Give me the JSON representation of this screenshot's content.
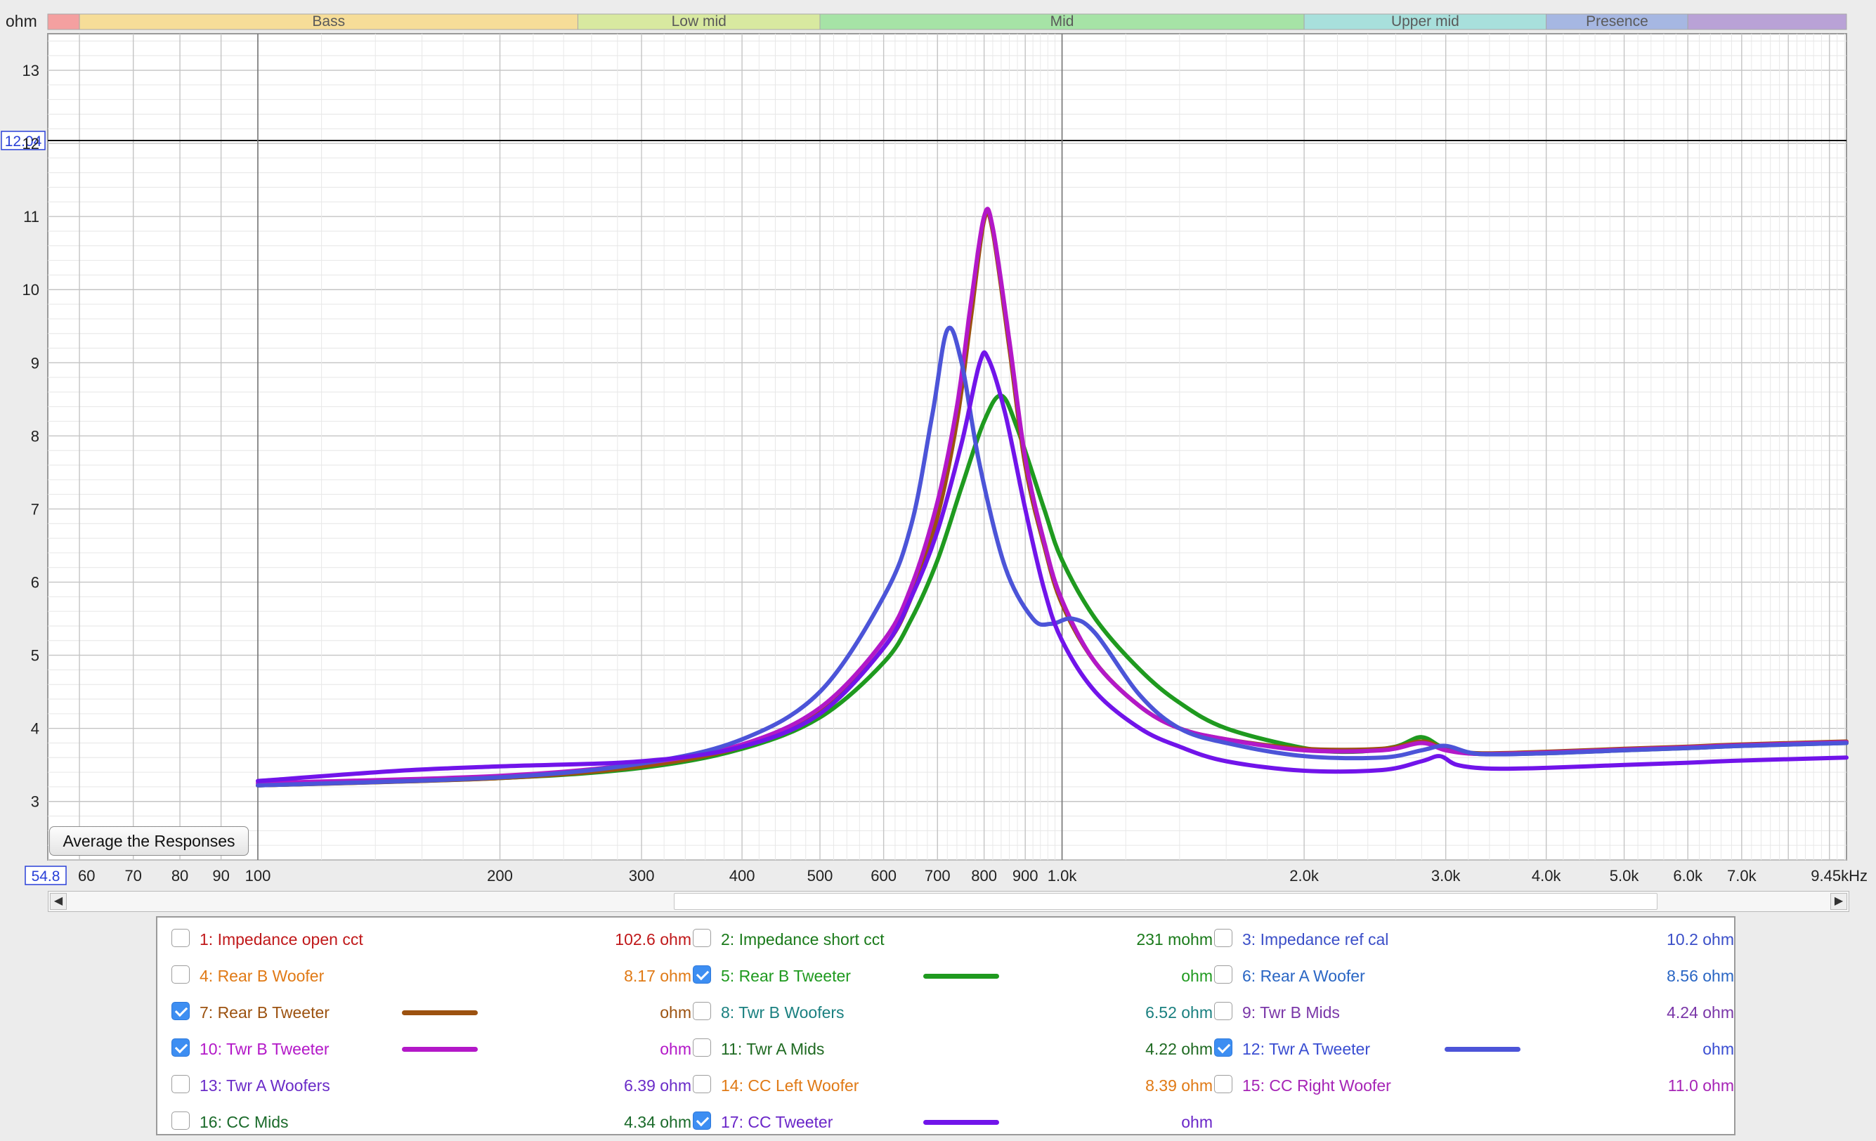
{
  "chart_data": {
    "type": "line",
    "ylabel": "ohm",
    "xunit": "kHz",
    "x_scale": "log",
    "xlim": [
      54.8,
      9450
    ],
    "ylim": [
      2.2,
      13.5
    ],
    "y_ticks": [
      3,
      4,
      5,
      6,
      7,
      8,
      9,
      10,
      11,
      12,
      13
    ],
    "y_tick_labels": [
      "3",
      "4",
      "5",
      "6",
      "7",
      "8",
      "9",
      "10",
      "11",
      "12",
      "13"
    ],
    "x_ticks": [
      60,
      70,
      80,
      90,
      100,
      200,
      300,
      400,
      500,
      600,
      700,
      800,
      900,
      1000,
      2000,
      3000,
      4000,
      5000,
      6000,
      7000,
      9450
    ],
    "x_tick_labels": [
      "60",
      "70",
      "80",
      "90",
      "100",
      "200",
      "300",
      "400",
      "500",
      "600",
      "700",
      "800",
      "900",
      "1.0k",
      "2.0k",
      "3.0k",
      "4.0k",
      "5.0k",
      "6.0k",
      "7.0k",
      "9.45kHz"
    ],
    "x_axis_start_label": "54.8",
    "cursor_y": 12.04,
    "cursor_y_label": "12.04",
    "cursor_x": 100,
    "cursor_x2": 1000,
    "bands": [
      {
        "name": "",
        "from": 54.8,
        "to": 60,
        "color": "#f4a0a0"
      },
      {
        "name": "Bass",
        "from": 60,
        "to": 250,
        "color": "#f6dd98"
      },
      {
        "name": "Low mid",
        "from": 250,
        "to": 500,
        "color": "#d8e9a0"
      },
      {
        "name": "Mid",
        "from": 500,
        "to": 2000,
        "color": "#a6e3a6"
      },
      {
        "name": "Upper mid",
        "from": 2000,
        "to": 4000,
        "color": "#a8e0dc"
      },
      {
        "name": "Presence",
        "from": 4000,
        "to": 6000,
        "color": "#a6b7e2"
      },
      {
        "name": "",
        "from": 6000,
        "to": 9450,
        "color": "#b9a2d6"
      }
    ],
    "series": [
      {
        "name": "5: Rear B Tweeter",
        "color": "#1f9a1f",
        "points": [
          [
            100,
            3.22
          ],
          [
            200,
            3.32
          ],
          [
            300,
            3.46
          ],
          [
            400,
            3.72
          ],
          [
            500,
            4.15
          ],
          [
            600,
            4.9
          ],
          [
            650,
            5.5
          ],
          [
            700,
            6.3
          ],
          [
            750,
            7.3
          ],
          [
            800,
            8.2
          ],
          [
            840,
            8.55
          ],
          [
            880,
            8.1
          ],
          [
            950,
            7.0
          ],
          [
            1000,
            6.3
          ],
          [
            1100,
            5.5
          ],
          [
            1250,
            4.8
          ],
          [
            1400,
            4.35
          ],
          [
            1600,
            4.0
          ],
          [
            2000,
            3.73
          ],
          [
            2300,
            3.68
          ],
          [
            2600,
            3.75
          ],
          [
            2800,
            3.88
          ],
          [
            3000,
            3.72
          ],
          [
            3300,
            3.65
          ],
          [
            4000,
            3.66
          ],
          [
            5000,
            3.7
          ],
          [
            6000,
            3.73
          ],
          [
            7000,
            3.76
          ],
          [
            9450,
            3.8
          ]
        ]
      },
      {
        "name": "7: Rear B Tweeter",
        "color": "#9c5210",
        "points": [
          [
            100,
            3.22
          ],
          [
            200,
            3.32
          ],
          [
            300,
            3.48
          ],
          [
            400,
            3.75
          ],
          [
            500,
            4.22
          ],
          [
            600,
            5.1
          ],
          [
            650,
            5.8
          ],
          [
            700,
            6.9
          ],
          [
            740,
            8.2
          ],
          [
            770,
            9.6
          ],
          [
            800,
            10.95
          ],
          [
            820,
            10.8
          ],
          [
            860,
            9.2
          ],
          [
            900,
            7.6
          ],
          [
            950,
            6.5
          ],
          [
            1000,
            5.7
          ],
          [
            1100,
            4.9
          ],
          [
            1250,
            4.3
          ],
          [
            1400,
            4.0
          ],
          [
            1600,
            3.85
          ],
          [
            2000,
            3.72
          ],
          [
            2500,
            3.72
          ],
          [
            2800,
            3.82
          ],
          [
            3000,
            3.72
          ],
          [
            3300,
            3.66
          ],
          [
            4000,
            3.68
          ],
          [
            5000,
            3.72
          ],
          [
            6000,
            3.75
          ],
          [
            7000,
            3.78
          ],
          [
            9450,
            3.82
          ]
        ]
      },
      {
        "name": "10: Twr B Tweeter",
        "color": "#b318c8",
        "points": [
          [
            100,
            3.25
          ],
          [
            200,
            3.35
          ],
          [
            300,
            3.52
          ],
          [
            400,
            3.78
          ],
          [
            500,
            4.28
          ],
          [
            600,
            5.2
          ],
          [
            650,
            5.95
          ],
          [
            700,
            7.1
          ],
          [
            740,
            8.4
          ],
          [
            770,
            9.8
          ],
          [
            800,
            11.0
          ],
          [
            820,
            10.85
          ],
          [
            860,
            9.3
          ],
          [
            900,
            7.7
          ],
          [
            950,
            6.55
          ],
          [
            1000,
            5.75
          ],
          [
            1100,
            4.9
          ],
          [
            1250,
            4.3
          ],
          [
            1400,
            4.0
          ],
          [
            1600,
            3.85
          ],
          [
            2000,
            3.7
          ],
          [
            2500,
            3.7
          ],
          [
            2800,
            3.8
          ],
          [
            3000,
            3.7
          ],
          [
            3300,
            3.65
          ],
          [
            4000,
            3.67
          ],
          [
            5000,
            3.71
          ],
          [
            6000,
            3.74
          ],
          [
            7000,
            3.77
          ],
          [
            9450,
            3.81
          ]
        ]
      },
      {
        "name": "12: Twr A Tweeter",
        "color": "#4c54d8",
        "points": [
          [
            100,
            3.22
          ],
          [
            200,
            3.33
          ],
          [
            300,
            3.52
          ],
          [
            400,
            3.85
          ],
          [
            500,
            4.5
          ],
          [
            600,
            5.8
          ],
          [
            650,
            6.8
          ],
          [
            690,
            8.3
          ],
          [
            720,
            9.45
          ],
          [
            750,
            9.0
          ],
          [
            790,
            7.6
          ],
          [
            850,
            6.2
          ],
          [
            920,
            5.5
          ],
          [
            970,
            5.43
          ],
          [
            1030,
            5.5
          ],
          [
            1100,
            5.3
          ],
          [
            1250,
            4.45
          ],
          [
            1400,
            4.0
          ],
          [
            1600,
            3.8
          ],
          [
            2000,
            3.62
          ],
          [
            2500,
            3.6
          ],
          [
            2800,
            3.7
          ],
          [
            3000,
            3.76
          ],
          [
            3300,
            3.65
          ],
          [
            4000,
            3.66
          ],
          [
            5000,
            3.7
          ],
          [
            6000,
            3.73
          ],
          [
            7000,
            3.76
          ],
          [
            9450,
            3.8
          ]
        ]
      },
      {
        "name": "17: CC Tweeter",
        "color": "#7114ea",
        "points": [
          [
            100,
            3.28
          ],
          [
            150,
            3.42
          ],
          [
            200,
            3.48
          ],
          [
            300,
            3.55
          ],
          [
            400,
            3.75
          ],
          [
            500,
            4.2
          ],
          [
            600,
            5.1
          ],
          [
            650,
            5.8
          ],
          [
            700,
            6.7
          ],
          [
            750,
            7.9
          ],
          [
            790,
            9.0
          ],
          [
            810,
            9.05
          ],
          [
            850,
            8.3
          ],
          [
            900,
            7.0
          ],
          [
            950,
            5.9
          ],
          [
            1000,
            5.2
          ],
          [
            1100,
            4.5
          ],
          [
            1250,
            4.0
          ],
          [
            1400,
            3.75
          ],
          [
            1600,
            3.55
          ],
          [
            2000,
            3.42
          ],
          [
            2500,
            3.43
          ],
          [
            2800,
            3.55
          ],
          [
            2950,
            3.62
          ],
          [
            3100,
            3.5
          ],
          [
            3400,
            3.45
          ],
          [
            4000,
            3.46
          ],
          [
            5000,
            3.5
          ],
          [
            6000,
            3.53
          ],
          [
            7000,
            3.56
          ],
          [
            9450,
            3.6
          ]
        ]
      }
    ]
  },
  "average_button": {
    "label": "Average the Responses"
  },
  "scroll": {
    "left_arrow": "◀",
    "right_arrow": "▶"
  },
  "legend": [
    {
      "label": "1: Impedance open cct",
      "checked": false,
      "value": "102.6 ohm",
      "color": "#c0181a"
    },
    {
      "label": "2: Impedance short cct",
      "checked": false,
      "value": "231 mohm",
      "color": "#1a7a1a"
    },
    {
      "label": "3: Impedance ref cal",
      "checked": false,
      "value": "10.2 ohm",
      "color": "#3b4fc8"
    },
    {
      "label": "4: Rear B Woofer",
      "checked": false,
      "value": "8.17 ohm",
      "color": "#e07a16"
    },
    {
      "label": "5: Rear B Tweeter",
      "checked": true,
      "value": "ohm",
      "color": "#1f9a1f",
      "swatch": "#1f9a1f"
    },
    {
      "label": "6: Rear A Woofer",
      "checked": false,
      "value": "8.56 ohm",
      "color": "#2a66c4"
    },
    {
      "label": "7: Rear B Tweeter",
      "checked": true,
      "value": "ohm",
      "color": "#9c5210",
      "swatch": "#9c5210"
    },
    {
      "label": "8: Twr B Woofers",
      "checked": false,
      "value": "6.52 ohm",
      "color": "#1a8080"
    },
    {
      "label": "9: Twr B Mids",
      "checked": false,
      "value": "4.24 ohm",
      "color": "#7a36a8"
    },
    {
      "label": "10: Twr B Tweeter",
      "checked": true,
      "value": "ohm",
      "color": "#b318c8",
      "swatch": "#b318c8"
    },
    {
      "label": "11: Twr A Mids",
      "checked": false,
      "value": "4.22 ohm",
      "color": "#1f6a22"
    },
    {
      "label": "12: Twr A Tweeter",
      "checked": true,
      "value": "ohm",
      "color": "#3a4ed2",
      "swatch": "#4c54d8"
    },
    {
      "label": "13: Twr A Woofers",
      "checked": false,
      "value": "6.39 ohm",
      "color": "#6a2cc8"
    },
    {
      "label": "14: CC Left Woofer",
      "checked": false,
      "value": "8.39 ohm",
      "color": "#e07a16"
    },
    {
      "label": "15: CC Right Woofer",
      "checked": false,
      "value": "11.0 ohm",
      "color": "#a624b6"
    },
    {
      "label": "16: CC Mids",
      "checked": false,
      "value": "4.34 ohm",
      "color": "#1a6a2a"
    },
    {
      "label": "17: CC Tweeter",
      "checked": true,
      "value": "ohm",
      "color": "#6a26c8",
      "swatch": "#7114ea"
    }
  ]
}
